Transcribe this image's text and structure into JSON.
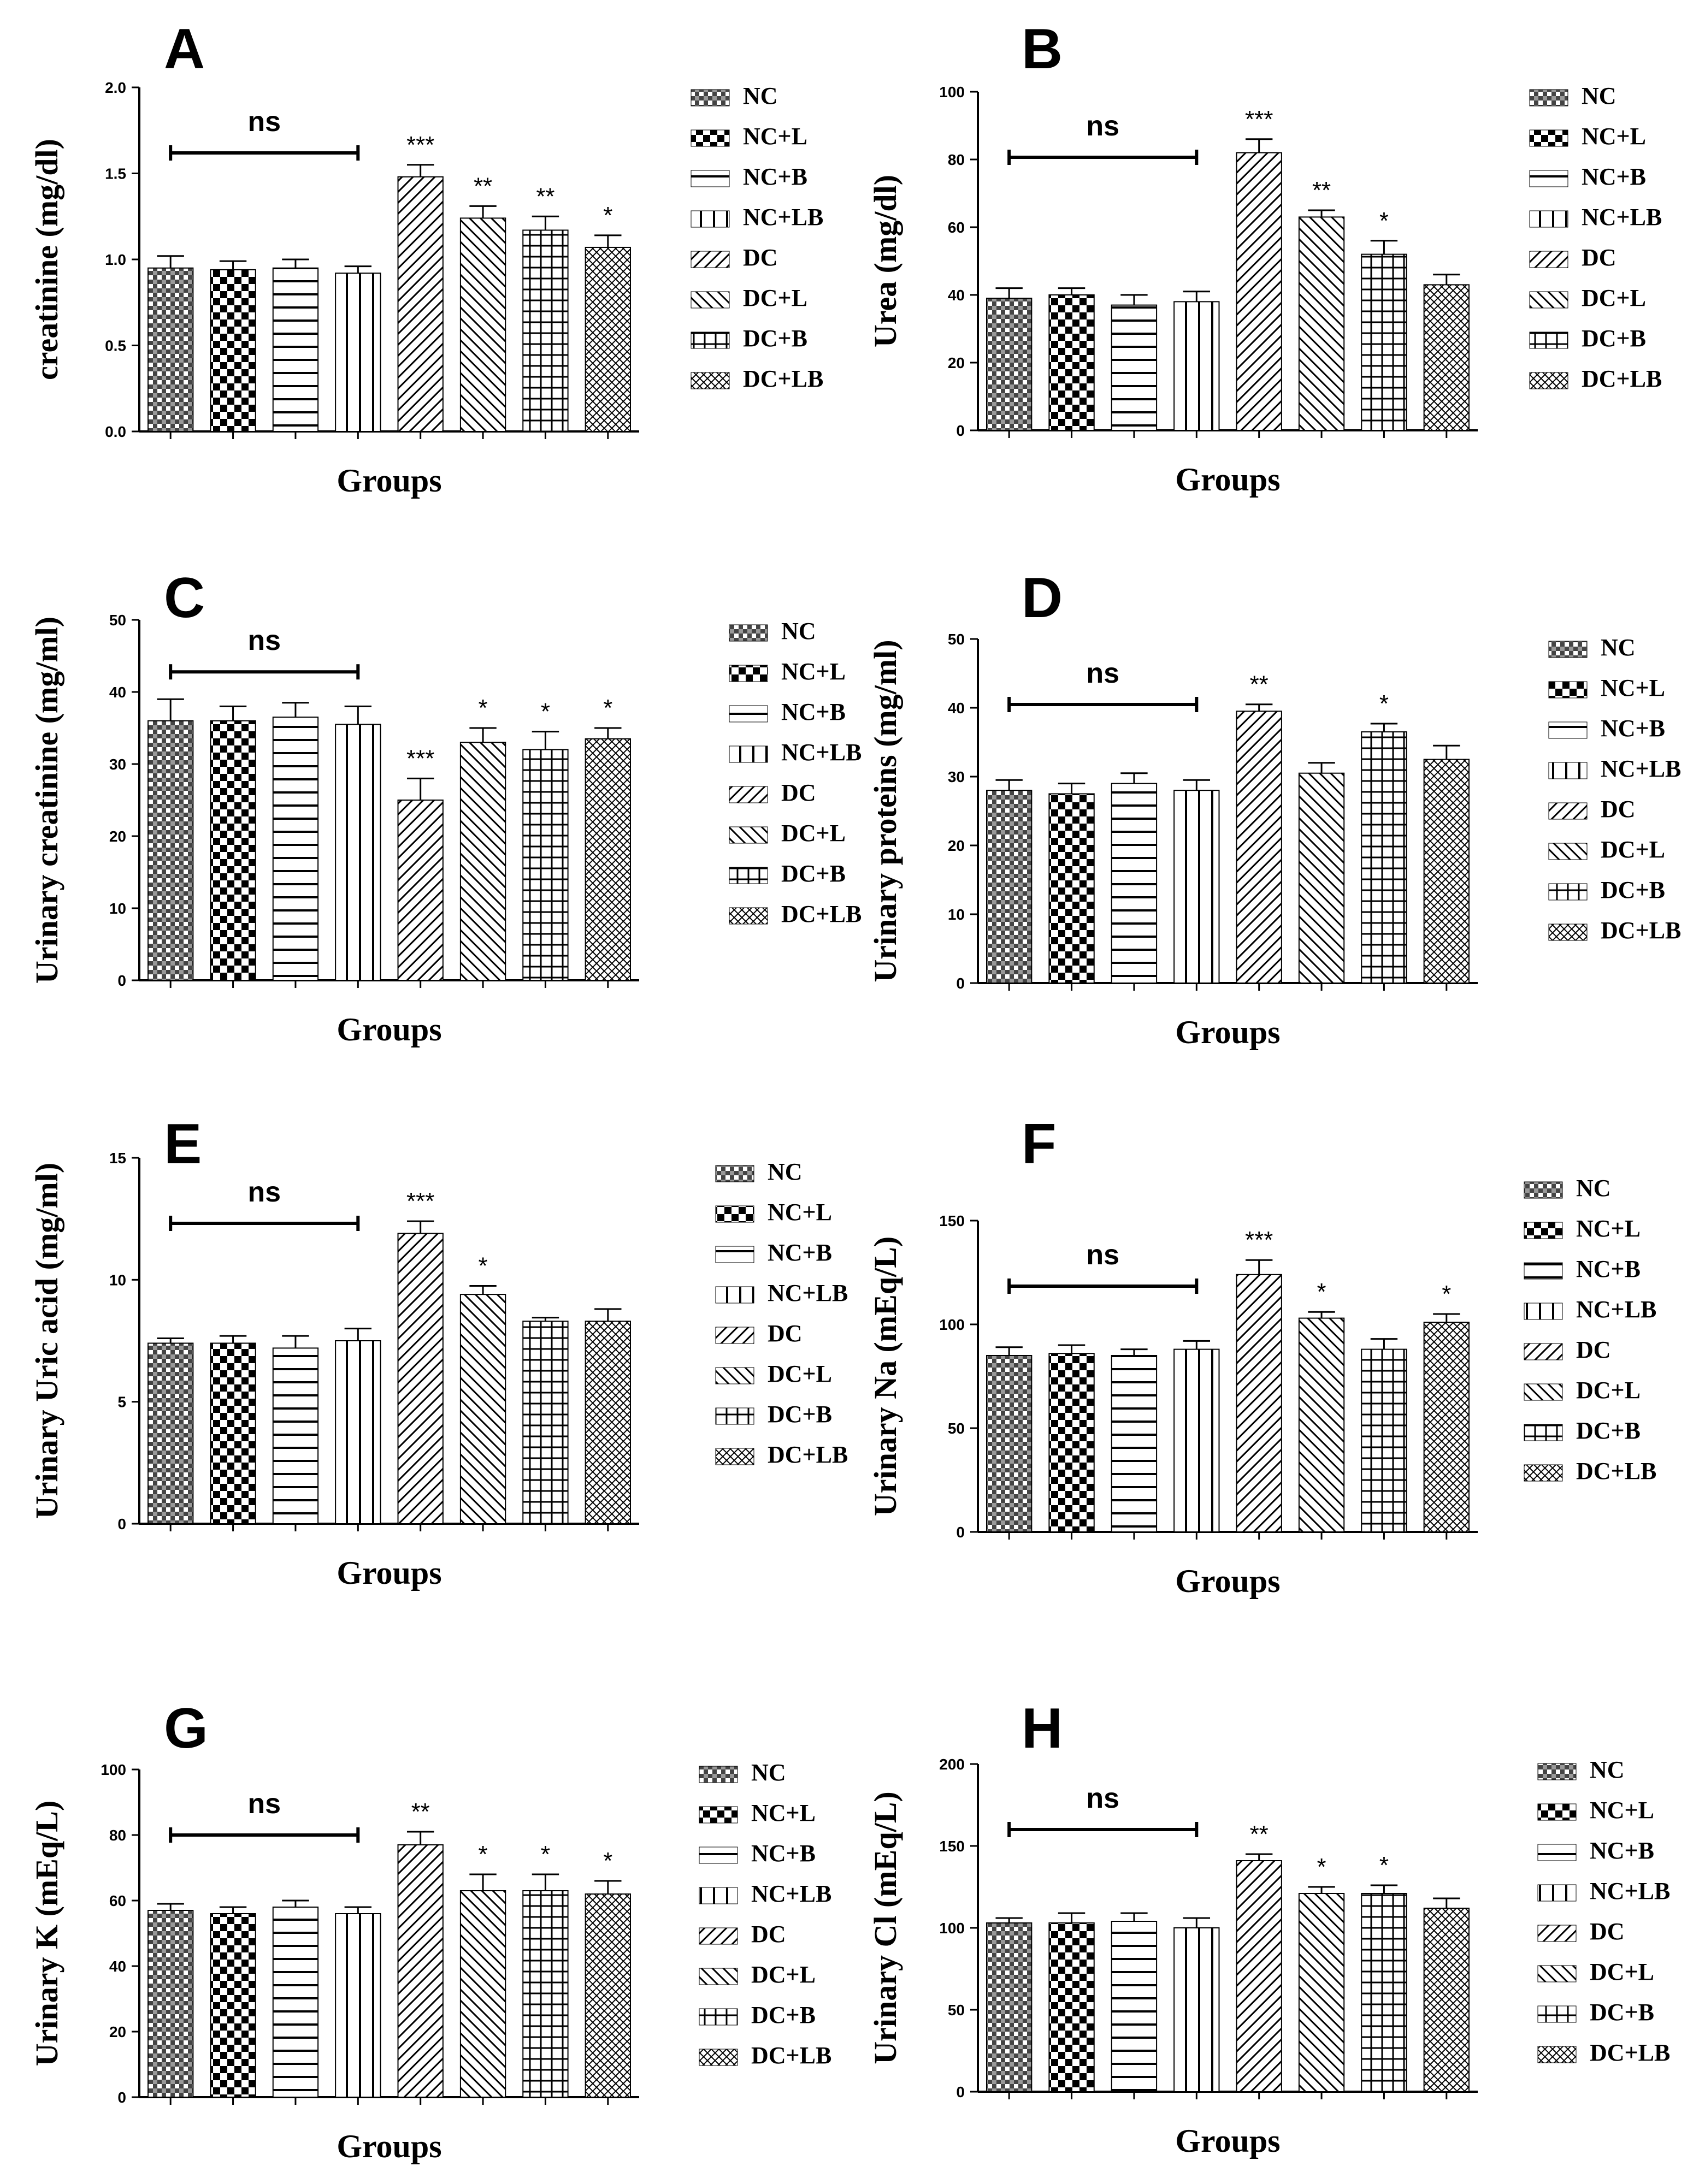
{
  "groups": [
    "NC",
    "NC+L",
    "NC+B",
    "NC+LB",
    "DC",
    "DC+L",
    "DC+B",
    "DC+LB"
  ],
  "chart_data": [
    {
      "type": "bar",
      "panel": "A",
      "xlabel": "Groups",
      "ylabel": "creatinine (mg/dl)",
      "ylim": [
        0,
        2.0
      ],
      "yticks": [
        "0.0",
        "0.5",
        "1.0",
        "1.5",
        "2.0"
      ],
      "categories": [
        "NC",
        "NC+L",
        "NC+B",
        "NC+LB",
        "DC",
        "DC+L",
        "DC+B",
        "DC+LB"
      ],
      "values": [
        0.95,
        0.94,
        0.95,
        0.92,
        1.48,
        1.24,
        1.17,
        1.07
      ],
      "errors": [
        0.07,
        0.05,
        0.05,
        0.04,
        0.07,
        0.07,
        0.08,
        0.07
      ],
      "significance": [
        "",
        "",
        "",
        "",
        "***",
        "**",
        "**",
        "*"
      ],
      "ns_label": "ns"
    },
    {
      "type": "bar",
      "panel": "B",
      "xlabel": "Groups",
      "ylabel": "Urea (mg/dl)",
      "ylim": [
        0,
        100
      ],
      "yticks": [
        "0",
        "20",
        "40",
        "60",
        "80",
        "100"
      ],
      "categories": [
        "NC",
        "NC+L",
        "NC+B",
        "NC+LB",
        "DC",
        "DC+L",
        "DC+B",
        "DC+LB"
      ],
      "values": [
        39,
        40,
        37,
        38,
        82,
        63,
        52,
        43
      ],
      "errors": [
        3,
        2,
        3,
        3,
        4,
        2,
        4,
        3
      ],
      "significance": [
        "",
        "",
        "",
        "",
        "***",
        "**",
        "*",
        ""
      ],
      "ns_label": "ns"
    },
    {
      "type": "bar",
      "panel": "C",
      "xlabel": "Groups",
      "ylabel": "Urinary creatinine (mg/ml)",
      "ylim": [
        0,
        50
      ],
      "yticks": [
        "0",
        "10",
        "20",
        "30",
        "40",
        "50"
      ],
      "categories": [
        "NC",
        "NC+L",
        "NC+B",
        "NC+LB",
        "DC",
        "DC+L",
        "DC+B",
        "DC+LB"
      ],
      "values": [
        36,
        36,
        36.5,
        35.5,
        25,
        33,
        32,
        33.5
      ],
      "errors": [
        3,
        2,
        2,
        2.5,
        3,
        2,
        2.5,
        1.5
      ],
      "significance": [
        "",
        "",
        "",
        "",
        "***",
        "*",
        "*",
        "*"
      ],
      "ns_label": "ns"
    },
    {
      "type": "bar",
      "panel": "D",
      "xlabel": "Groups",
      "ylabel": "Urinary proteins (mg/ml)",
      "ylim": [
        0,
        50
      ],
      "yticks": [
        "0",
        "10",
        "20",
        "30",
        "40",
        "50"
      ],
      "categories": [
        "NC",
        "NC+L",
        "NC+B",
        "NC+LB",
        "DC",
        "DC+L",
        "DC+B",
        "DC+LB"
      ],
      "values": [
        28,
        27.5,
        29,
        28,
        39.5,
        30.5,
        36.5,
        32.5
      ],
      "errors": [
        1.5,
        1.5,
        1.5,
        1.5,
        1,
        1.5,
        1.2,
        2
      ],
      "significance": [
        "",
        "",
        "",
        "",
        "**",
        "",
        "*",
        ""
      ],
      "ns_label": "ns"
    },
    {
      "type": "bar",
      "panel": "E",
      "xlabel": "Groups",
      "ylabel": "Urinary Uric acid (mg/ml)",
      "ylim": [
        0,
        15
      ],
      "yticks": [
        "0",
        "5",
        "10",
        "15"
      ],
      "categories": [
        "NC",
        "NC+L",
        "NC+B",
        "NC+LB",
        "DC",
        "DC+L",
        "DC+B",
        "DC+LB"
      ],
      "values": [
        7.4,
        7.4,
        7.2,
        7.5,
        11.9,
        9.4,
        8.3,
        8.3
      ],
      "errors": [
        0.2,
        0.3,
        0.5,
        0.5,
        0.5,
        0.35,
        0.15,
        0.5
      ],
      "significance": [
        "",
        "",
        "",
        "",
        "***",
        "*",
        "",
        ""
      ],
      "ns_label": "ns"
    },
    {
      "type": "bar",
      "panel": "F",
      "xlabel": "Groups",
      "ylabel": "Urinary Na  (mEq/L)",
      "ylim": [
        0,
        150
      ],
      "yticks": [
        "0",
        "50",
        "100",
        "150"
      ],
      "categories": [
        "NC",
        "NC+L",
        "NC+B",
        "NC+LB",
        "DC",
        "DC+L",
        "DC+B",
        "DC+LB"
      ],
      "values": [
        85,
        86,
        85,
        88,
        124,
        103,
        88,
        101
      ],
      "errors": [
        4,
        4,
        3,
        4,
        7,
        3,
        5,
        4
      ],
      "significance": [
        "",
        "",
        "",
        "",
        "***",
        "*",
        "",
        "*"
      ],
      "ns_label": "ns"
    },
    {
      "type": "bar",
      "panel": "G",
      "xlabel": "Groups",
      "ylabel": "Urinary K (mEq/L)",
      "ylim": [
        0,
        100
      ],
      "yticks": [
        "0",
        "20",
        "40",
        "60",
        "80",
        "100"
      ],
      "categories": [
        "NC",
        "NC+L",
        "NC+B",
        "NC+LB",
        "DC",
        "DC+L",
        "DC+B",
        "DC+LB"
      ],
      "values": [
        57,
        56,
        58,
        56,
        77,
        63,
        63,
        62
      ],
      "errors": [
        2,
        2,
        2,
        2,
        4,
        5,
        5,
        4
      ],
      "significance": [
        "",
        "",
        "",
        "",
        "**",
        "*",
        "*",
        "*"
      ],
      "ns_label": "ns"
    },
    {
      "type": "bar",
      "panel": "H",
      "xlabel": "Groups",
      "ylabel": "Urinary Cl (mEq/L)",
      "ylim": [
        0,
        200
      ],
      "yticks": [
        "0",
        "50",
        "100",
        "150",
        "200"
      ],
      "categories": [
        "NC",
        "NC+L",
        "NC+B",
        "NC+LB",
        "DC",
        "DC+L",
        "DC+B",
        "DC+LB"
      ],
      "values": [
        103,
        103,
        104,
        100,
        141,
        121,
        121,
        112
      ],
      "errors": [
        3,
        6,
        5,
        6,
        4,
        4,
        5,
        6
      ],
      "significance": [
        "",
        "",
        "",
        "",
        "**",
        "*",
        "*",
        ""
      ],
      "ns_label": "ns"
    }
  ]
}
